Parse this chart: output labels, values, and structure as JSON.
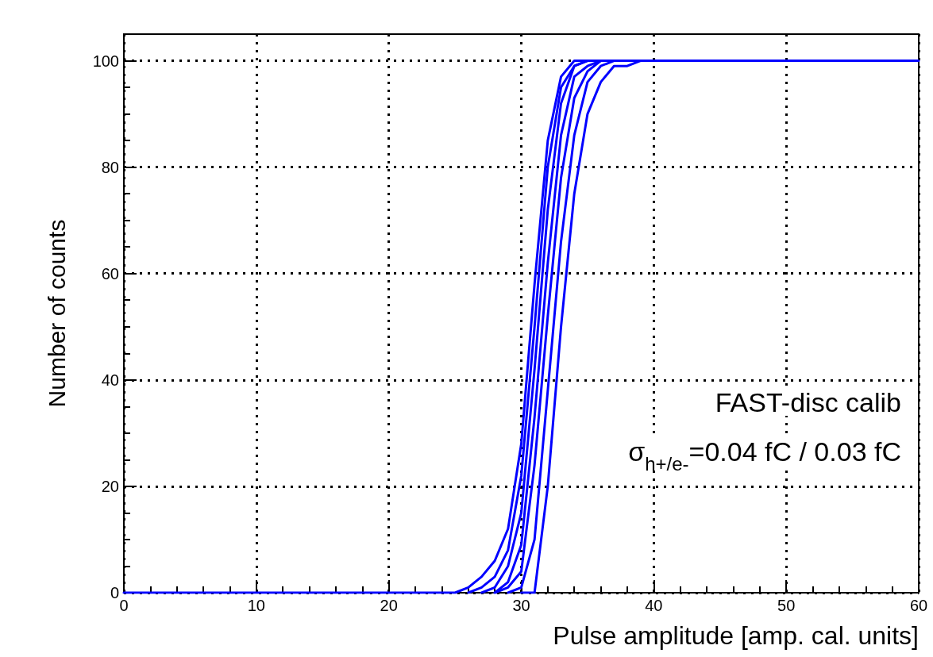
{
  "chart_data": {
    "type": "line",
    "xlabel": "Pulse amplitude [amp. cal. units]",
    "ylabel": "Number of counts",
    "annotations": [
      "FAST-disc calib",
      "σ$_{h+/e-}$=0.04 fC / 0.03 fC"
    ],
    "x": [
      0,
      24,
      25,
      26,
      27,
      28,
      29,
      30,
      31,
      32,
      33,
      34,
      35,
      36,
      37,
      38,
      39,
      40,
      60
    ],
    "series": [
      {
        "color": "#0000ff",
        "values": [
          0,
          0,
          0,
          1,
          3,
          6,
          12,
          28,
          58,
          85,
          97,
          100,
          100,
          100,
          100,
          100,
          100,
          100,
          100
        ]
      },
      {
        "color": "#0000ff",
        "x": [
          26,
          27,
          28,
          29,
          30,
          31,
          32,
          33,
          34,
          35
        ],
        "values": [
          0,
          1,
          3,
          8,
          22,
          50,
          80,
          95,
          99,
          100
        ]
      },
      {
        "color": "#0000ff",
        "x": [
          27,
          28,
          29,
          30,
          31,
          32,
          33,
          34,
          35
        ],
        "values": [
          0,
          1,
          5,
          15,
          42,
          72,
          92,
          99,
          100
        ]
      },
      {
        "color": "#0000ff",
        "x": [
          28,
          29,
          30,
          31,
          32,
          33,
          34,
          35,
          36,
          37
        ],
        "values": [
          0,
          2,
          9,
          33,
          62,
          86,
          97,
          99,
          100,
          100
        ]
      },
      {
        "color": "#0000ff",
        "x": [
          28,
          29,
          30,
          31,
          32,
          33,
          34,
          35,
          36
        ],
        "values": [
          0,
          1,
          4,
          24,
          52,
          78,
          93,
          98,
          100
        ]
      },
      {
        "color": "#0000ff",
        "x": [
          29,
          30,
          31,
          32,
          33,
          34,
          35,
          36,
          37
        ],
        "values": [
          0,
          1,
          10,
          38,
          66,
          86,
          96,
          99,
          100
        ]
      },
      {
        "color": "#0000ff",
        "x": [
          30,
          31,
          32,
          33,
          34,
          35,
          36,
          37,
          38,
          39
        ],
        "values": [
          0,
          0,
          20,
          50,
          75,
          90,
          96,
          99,
          99,
          100
        ]
      }
    ],
    "xlim": [
      0,
      60
    ],
    "xticks": [
      0,
      10,
      20,
      30,
      40,
      50,
      60
    ],
    "ylim": [
      0,
      105
    ],
    "yticks": [
      0,
      20,
      40,
      60,
      80,
      100
    ],
    "grid": true,
    "marker": "none",
    "line_style": "solid"
  }
}
